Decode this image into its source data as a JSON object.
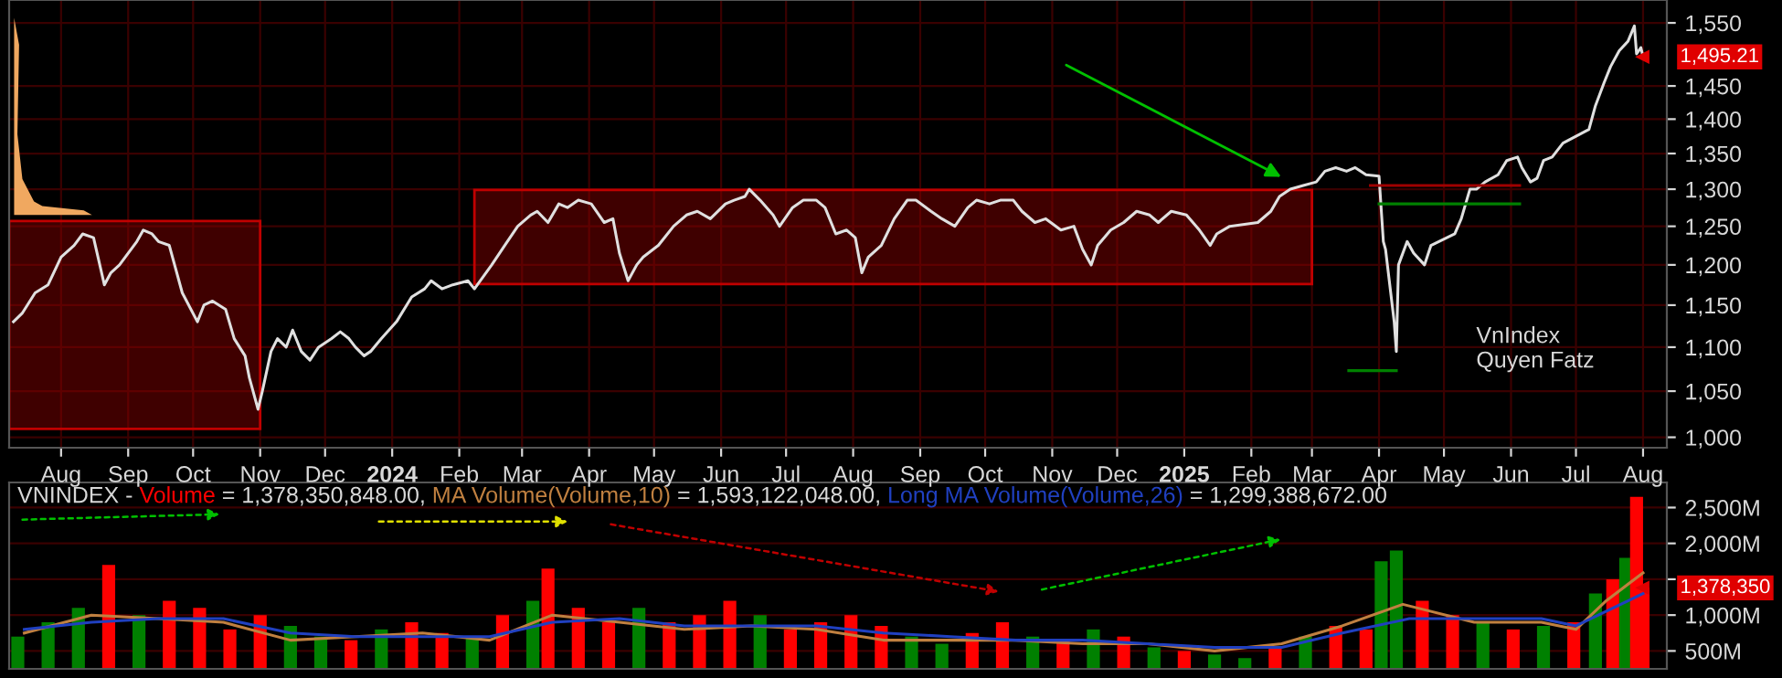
{
  "chart_data": [
    {
      "type": "line",
      "log": "y",
      "grid": true,
      "ylim": [
        989,
        1588
      ],
      "yticks": [
        {
          "value": 1000,
          "label": "1,000"
        },
        {
          "value": 1050,
          "label": "1,050"
        },
        {
          "value": 1100,
          "label": "1,100"
        },
        {
          "value": 1150,
          "label": "1,150"
        },
        {
          "value": 1200,
          "label": "1,200"
        },
        {
          "value": 1250,
          "label": "1,250"
        },
        {
          "value": 1300,
          "label": "1,300"
        },
        {
          "value": 1350,
          "label": "1,350"
        },
        {
          "value": 1400,
          "label": "1,400"
        },
        {
          "value": 1450,
          "label": "1,450"
        },
        {
          "value": 1550,
          "label": "1,550"
        }
      ],
      "xlim": [
        "2023-07-08",
        "2025-08-12"
      ],
      "xticks": [
        {
          "value": "2023-08-01",
          "label": "Aug"
        },
        {
          "value": "2023-09-01",
          "label": "Sep"
        },
        {
          "value": "2023-10-01",
          "label": "Oct"
        },
        {
          "value": "2023-11-01",
          "label": "Nov"
        },
        {
          "value": "2023-12-01",
          "label": "Dec"
        },
        {
          "value": "2024-01-01",
          "label": "2024"
        },
        {
          "value": "2024-02-01",
          "label": "Feb"
        },
        {
          "value": "2024-03-01",
          "label": "Mar"
        },
        {
          "value": "2024-04-01",
          "label": "Apr"
        },
        {
          "value": "2024-05-01",
          "label": "May"
        },
        {
          "value": "2024-06-01",
          "label": "Jun"
        },
        {
          "value": "2024-07-01",
          "label": "Jul"
        },
        {
          "value": "2024-08-01",
          "label": "Aug"
        },
        {
          "value": "2024-09-01",
          "label": "Sep"
        },
        {
          "value": "2024-10-01",
          "label": "Oct"
        },
        {
          "value": "2024-11-01",
          "label": "Nov"
        },
        {
          "value": "2024-12-01",
          "label": "Dec"
        },
        {
          "value": "2025-01-01",
          "label": "2025"
        },
        {
          "value": "2025-02-01",
          "label": "Feb"
        },
        {
          "value": "2025-03-01",
          "label": "Mar"
        },
        {
          "value": "2025-04-01",
          "label": "Apr"
        },
        {
          "value": "2025-05-01",
          "label": "May"
        },
        {
          "value": "2025-06-01",
          "label": "Jun"
        },
        {
          "value": "2025-07-01",
          "label": "Jul"
        },
        {
          "value": "2025-08-01",
          "label": "Aug"
        }
      ],
      "annotations": [
        "VnIndex\nQuyen Fatz",
        {
          "text": "1,495.21",
          "x": "2025-08-01",
          "y": 1495.21
        }
      ],
      "series": [
        {
          "type": "area",
          "color": "#8b0000",
          "x": [
            "2023-07-08",
            "2023-07-08",
            "2023-11-01",
            "2023-11-01",
            "2023-07-08"
          ],
          "values": [
            1009,
            1257,
            1257,
            1009,
            1009
          ]
        },
        {
          "type": "area",
          "color": "#8b0000",
          "x": [
            "2024-02-08",
            "2024-02-08",
            "2025-03-01",
            "2025-03-01",
            "2024-02-08"
          ],
          "values": [
            1176,
            1299,
            1299,
            1176,
            1176
          ]
        },
        {
          "color": "#e0e0e0",
          "x": [
            "2023-07-10",
            "2023-07-14",
            "2023-07-20",
            "2023-07-26",
            "2023-08-01",
            "2023-08-07",
            "2023-08-11",
            "2023-08-16",
            "2023-08-21",
            "2023-08-24",
            "2023-08-28",
            "2023-09-05",
            "2023-09-08",
            "2023-09-12",
            "2023-09-15",
            "2023-09-20",
            "2023-09-26",
            "2023-09-28",
            "2023-10-03",
            "2023-10-06",
            "2023-10-10",
            "2023-10-16",
            "2023-10-20",
            "2023-10-25",
            "2023-10-27",
            "2023-10-31",
            "2023-11-02",
            "2023-11-06",
            "2023-11-09",
            "2023-11-13",
            "2023-11-16",
            "2023-11-20",
            "2023-11-24",
            "2023-11-28",
            "2023-12-04",
            "2023-12-08",
            "2023-12-12",
            "2023-12-15",
            "2023-12-19",
            "2023-12-22",
            "2023-12-27",
            "2024-01-03",
            "2024-01-10",
            "2024-01-16",
            "2024-01-19",
            "2024-01-24",
            "2024-01-29",
            "2024-02-05",
            "2024-02-08",
            "2024-02-16",
            "2024-02-22",
            "2024-02-28",
            "2024-03-05",
            "2024-03-08",
            "2024-03-13",
            "2024-03-18",
            "2024-03-22",
            "2024-03-27",
            "2024-04-02",
            "2024-04-08",
            "2024-04-12",
            "2024-04-15",
            "2024-04-19",
            "2024-04-23",
            "2024-04-26",
            "2024-05-03",
            "2024-05-10",
            "2024-05-16",
            "2024-05-21",
            "2024-05-27",
            "2024-06-03",
            "2024-06-07",
            "2024-06-12",
            "2024-06-14",
            "2024-06-19",
            "2024-06-25",
            "2024-06-28",
            "2024-07-04",
            "2024-07-09",
            "2024-07-15",
            "2024-07-19",
            "2024-07-24",
            "2024-07-29",
            "2024-08-02",
            "2024-08-05",
            "2024-08-08",
            "2024-08-14",
            "2024-08-20",
            "2024-08-26",
            "2024-08-30",
            "2024-09-06",
            "2024-09-11",
            "2024-09-17",
            "2024-09-23",
            "2024-09-27",
            "2024-10-03",
            "2024-10-08",
            "2024-10-14",
            "2024-10-18",
            "2024-10-24",
            "2024-10-29",
            "2024-11-05",
            "2024-11-11",
            "2024-11-15",
            "2024-11-19",
            "2024-11-22",
            "2024-11-28",
            "2024-12-04",
            "2024-12-10",
            "2024-12-16",
            "2024-12-20",
            "2024-12-26",
            "2025-01-02",
            "2025-01-08",
            "2025-01-13",
            "2025-01-16",
            "2025-01-22",
            "2025-02-04",
            "2025-02-10",
            "2025-02-14",
            "2025-02-19",
            "2025-02-25",
            "2025-03-03",
            "2025-03-07",
            "2025-03-12",
            "2025-03-17",
            "2025-03-21",
            "2025-03-26",
            "2025-04-01",
            "2025-04-03",
            "2025-04-04",
            "2025-04-08",
            "2025-04-09",
            "2025-04-10",
            "2025-04-14",
            "2025-04-17",
            "2025-04-22",
            "2025-04-25",
            "2025-05-06",
            "2025-05-09",
            "2025-05-13",
            "2025-05-16",
            "2025-05-20",
            "2025-05-26",
            "2025-05-30",
            "2025-06-04",
            "2025-06-06",
            "2025-06-10",
            "2025-06-13",
            "2025-06-16",
            "2025-06-20",
            "2025-06-25",
            "2025-07-01",
            "2025-07-07",
            "2025-07-10",
            "2025-07-14",
            "2025-07-17",
            "2025-07-21",
            "2025-07-25",
            "2025-07-28",
            "2025-07-29",
            "2025-07-31",
            "2025-08-01"
          ],
          "values": [
            1130,
            1140,
            1165,
            1175,
            1210,
            1225,
            1240,
            1235,
            1175,
            1190,
            1200,
            1230,
            1245,
            1240,
            1230,
            1225,
            1165,
            1155,
            1130,
            1150,
            1155,
            1145,
            1110,
            1090,
            1065,
            1030,
            1050,
            1095,
            1110,
            1100,
            1120,
            1095,
            1085,
            1100,
            1110,
            1118,
            1110,
            1100,
            1090,
            1095,
            1110,
            1130,
            1160,
            1170,
            1180,
            1170,
            1175,
            1180,
            1170,
            1200,
            1225,
            1250,
            1265,
            1270,
            1255,
            1280,
            1275,
            1285,
            1280,
            1255,
            1260,
            1215,
            1180,
            1200,
            1210,
            1225,
            1250,
            1265,
            1270,
            1260,
            1280,
            1285,
            1290,
            1300,
            1285,
            1265,
            1250,
            1275,
            1285,
            1285,
            1275,
            1240,
            1245,
            1235,
            1190,
            1210,
            1225,
            1260,
            1285,
            1285,
            1270,
            1260,
            1250,
            1275,
            1285,
            1280,
            1285,
            1285,
            1270,
            1255,
            1260,
            1245,
            1250,
            1220,
            1200,
            1225,
            1245,
            1255,
            1270,
            1265,
            1255,
            1270,
            1265,
            1245,
            1225,
            1240,
            1250,
            1255,
            1270,
            1290,
            1300,
            1305,
            1310,
            1325,
            1330,
            1325,
            1330,
            1320,
            1318,
            1230,
            1220,
            1130,
            1095,
            1200,
            1230,
            1215,
            1200,
            1225,
            1240,
            1260,
            1300,
            1300,
            1310,
            1320,
            1340,
            1345,
            1330,
            1310,
            1315,
            1340,
            1345,
            1365,
            1375,
            1385,
            1420,
            1455,
            1480,
            1505,
            1520,
            1545,
            1500,
            1510,
            1495.21
          ]
        },
        {
          "color": "#008000",
          "x": [
            "2025-04-01",
            "2025-06-05"
          ],
          "values": [
            1280,
            1280
          ]
        },
        {
          "color": "#008000",
          "x": [
            "2025-03-18",
            "2025-04-09"
          ],
          "values": [
            1073,
            1073
          ]
        },
        {
          "color": "#a00000",
          "x": [
            "2025-03-28",
            "2025-06-05"
          ],
          "values": [
            1305,
            1305
          ]
        }
      ]
    },
    {
      "type": "bar",
      "grid": true,
      "tick_labels": "y",
      "legend": "top left",
      "ylim": [
        250,
        2850
      ],
      "yticks": [
        {
          "value": 500,
          "label": "500M"
        },
        {
          "value": 1000,
          "label": "1,000M"
        },
        {
          "value": 1500,
          "label": null
        },
        {
          "value": 2000,
          "label": "2,000M"
        },
        {
          "value": 2500,
          "label": "2,500M"
        }
      ],
      "xlim": [
        "2023-07-08",
        "2025-08-12"
      ],
      "title": "VNINDEX -",
      "annotations": [
        "= 1,378,350,848.00,",
        "= 1,593,122,048.00,",
        "= 1,299,388,672.00",
        {
          "text": "1,378,350",
          "x": "2025-08-01",
          "y": 1380
        }
      ],
      "series": [
        {
          "name": "Volume",
          "color": "#ff0000",
          "x": [
            "2023-07-12",
            "2023-07-26",
            "2023-08-09",
            "2023-08-23",
            "2023-09-06",
            "2023-09-20",
            "2023-10-04",
            "2023-10-18",
            "2023-11-01",
            "2023-11-15",
            "2023-11-29",
            "2023-12-13",
            "2023-12-27",
            "2024-01-10",
            "2024-01-24",
            "2024-02-07",
            "2024-02-21",
            "2024-03-06",
            "2024-03-13",
            "2024-03-27",
            "2024-04-10",
            "2024-04-24",
            "2024-05-08",
            "2024-05-22",
            "2024-06-05",
            "2024-06-19",
            "2024-07-03",
            "2024-07-17",
            "2024-07-31",
            "2024-08-14",
            "2024-08-28",
            "2024-09-11",
            "2024-09-25",
            "2024-10-09",
            "2024-10-23",
            "2024-11-06",
            "2024-11-20",
            "2024-12-04",
            "2024-12-18",
            "2025-01-01",
            "2025-01-15",
            "2025-01-29",
            "2025-02-12",
            "2025-02-26",
            "2025-03-12",
            "2025-03-26",
            "2025-04-02",
            "2025-04-09",
            "2025-04-21",
            "2025-05-05",
            "2025-05-19",
            "2025-06-02",
            "2025-06-16",
            "2025-06-30",
            "2025-07-10",
            "2025-07-18",
            "2025-07-24",
            "2025-07-29",
            "2025-08-01"
          ],
          "values": [
            700,
            900,
            1100,
            1700,
            1000,
            1200,
            1100,
            800,
            1000,
            850,
            700,
            650,
            800,
            900,
            750,
            700,
            1000,
            1200,
            1650,
            1100,
            900,
            1100,
            900,
            1000,
            1200,
            1000,
            800,
            900,
            1000,
            850,
            700,
            600,
            750,
            900,
            700,
            650,
            800,
            700,
            550,
            500,
            450,
            400,
            550,
            700,
            850,
            800,
            1750,
            1900,
            1200,
            1000,
            900,
            800,
            850,
            900,
            1300,
            1500,
            1800,
            2650,
            1380
          ],
          "colors": [
            "#008000",
            "#008000",
            "#008000",
            "#ff0000",
            "#008000",
            "#ff0000",
            "#ff0000",
            "#ff0000",
            "#ff0000",
            "#008000",
            "#008000",
            "#ff0000",
            "#008000",
            "#ff0000",
            "#ff0000",
            "#008000",
            "#ff0000",
            "#008000",
            "#ff0000",
            "#ff0000",
            "#ff0000",
            "#008000",
            "#ff0000",
            "#ff0000",
            "#ff0000",
            "#008000",
            "#ff0000",
            "#ff0000",
            "#ff0000",
            "#ff0000",
            "#008000",
            "#008000",
            "#ff0000",
            "#ff0000",
            "#008000",
            "#ff0000",
            "#008000",
            "#ff0000",
            "#008000",
            "#ff0000",
            "#008000",
            "#008000",
            "#ff0000",
            "#008000",
            "#ff0000",
            "#ff0000",
            "#008000",
            "#008000",
            "#ff0000",
            "#ff0000",
            "#008000",
            "#ff0000",
            "#008000",
            "#ff0000",
            "#008000",
            "#ff0000",
            "#008000",
            "#ff0000",
            "#ff0000"
          ]
        },
        {
          "type": "line",
          "name": "MA Volume(Volume,10)",
          "color": "#c08040",
          "x": [
            "2023-07-15",
            "2023-08-15",
            "2023-09-15",
            "2023-10-15",
            "2023-11-15",
            "2023-12-15",
            "2024-01-15",
            "2024-02-15",
            "2024-03-15",
            "2024-04-15",
            "2024-05-15",
            "2024-06-15",
            "2024-07-15",
            "2024-08-15",
            "2024-09-15",
            "2024-10-15",
            "2024-11-15",
            "2024-12-15",
            "2025-01-15",
            "2025-02-15",
            "2025-03-15",
            "2025-04-12",
            "2025-05-15",
            "2025-06-15",
            "2025-07-01",
            "2025-07-15",
            "2025-08-01"
          ],
          "values": [
            750,
            1000,
            950,
            900,
            650,
            700,
            750,
            650,
            1000,
            900,
            800,
            850,
            800,
            650,
            650,
            650,
            600,
            600,
            500,
            600,
            850,
            1150,
            900,
            900,
            800,
            1200,
            1590
          ]
        },
        {
          "type": "line",
          "name": "Long MA Volume(Volume,26)",
          "color": "#2040c0",
          "x": [
            "2023-07-15",
            "2023-08-15",
            "2023-09-15",
            "2023-10-15",
            "2023-11-15",
            "2023-12-15",
            "2024-01-15",
            "2024-02-15",
            "2024-03-15",
            "2024-04-15",
            "2024-05-15",
            "2024-06-15",
            "2024-07-15",
            "2024-08-15",
            "2024-09-15",
            "2024-10-15",
            "2024-11-15",
            "2024-12-15",
            "2025-01-15",
            "2025-02-15",
            "2025-03-15",
            "2025-04-15",
            "2025-05-15",
            "2025-06-15",
            "2025-07-01",
            "2025-08-01"
          ],
          "values": [
            800,
            900,
            950,
            950,
            750,
            700,
            700,
            700,
            900,
            950,
            850,
            850,
            850,
            750,
            700,
            650,
            650,
            600,
            550,
            550,
            750,
            950,
            950,
            950,
            850,
            1300
          ]
        }
      ]
    }
  ]
}
